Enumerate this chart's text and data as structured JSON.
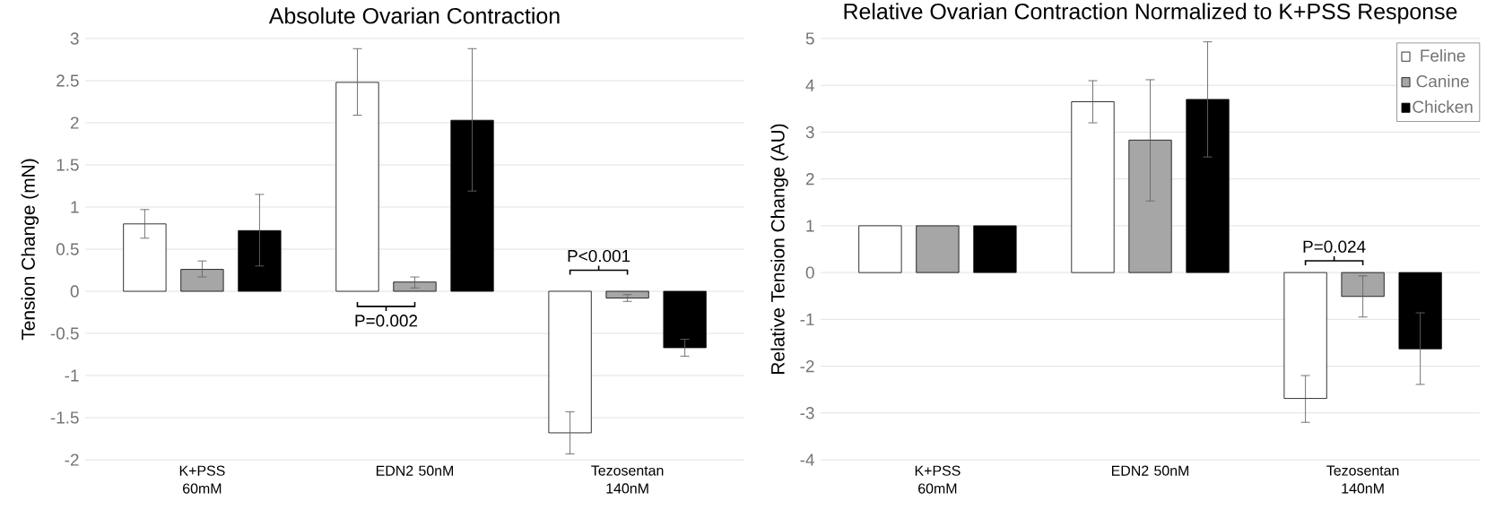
{
  "chart_data": [
    {
      "type": "bar",
      "title": "Absolute Ovarian Contraction",
      "ylabel": "Tension Change (mN)",
      "categories": [
        "K+PSS 60mM",
        "EDN2 50nM",
        "Tezosentan 140nM"
      ],
      "series": [
        {
          "color": "#ffffff",
          "values": [
            0.8,
            2.48,
            -1.68
          ],
          "errors": [
            [
              0.63,
              0.97
            ],
            [
              2.09,
              2.88
            ],
            [
              -1.93,
              -1.43
            ]
          ]
        },
        {
          "color": "#a6a6a6",
          "values": [
            0.26,
            0.11,
            -0.08
          ],
          "errors": [
            [
              0.17,
              0.36
            ],
            [
              0.04,
              0.17
            ],
            [
              -0.12,
              -0.04
            ]
          ]
        },
        {
          "color": "#000000",
          "values": [
            0.72,
            2.03,
            -0.67
          ],
          "errors": [
            [
              0.3,
              1.15
            ],
            [
              1.19,
              2.88
            ],
            [
              -0.77,
              -0.57
            ]
          ]
        }
      ],
      "ylim": [
        -2,
        3
      ],
      "yticks": [
        -2,
        -1.5,
        -1,
        -0.5,
        0,
        0.5,
        1,
        1.5,
        2,
        2.5,
        3
      ],
      "grid": "y",
      "legend": false,
      "annotations": [
        "P=0.002",
        "P<0.001"
      ]
    },
    {
      "type": "bar",
      "title": "Relative Ovarian Contraction Normalized to K+PSS Response",
      "ylabel": "Relative Tension Change (AU)",
      "categories": [
        "K+PSS 60mM",
        "EDN2 50nM",
        "Tezosentan 140nM"
      ],
      "series": [
        {
          "name": "Feline",
          "color": "#ffffff",
          "values": [
            1,
            3.65,
            -2.69
          ],
          "errors": [
            null,
            [
              3.2,
              4.1
            ],
            [
              -3.2,
              -2.2
            ]
          ]
        },
        {
          "name": "Canine",
          "color": "#a6a6a6",
          "values": [
            1,
            2.83,
            -0.51
          ],
          "errors": [
            null,
            [
              1.53,
              4.12
            ],
            [
              -0.95,
              -0.07
            ]
          ]
        },
        {
          "name": "Chicken",
          "color": "#000000",
          "values": [
            1,
            3.7,
            -1.63
          ],
          "errors": [
            null,
            [
              2.47,
              4.93
            ],
            [
              -2.39,
              -0.86
            ]
          ]
        }
      ],
      "ylim": [
        -4,
        5
      ],
      "yticks": [
        -4,
        -3,
        -2,
        -1,
        0,
        1,
        2,
        3,
        4,
        5
      ],
      "grid": "y",
      "legend": "top right",
      "annotations": [
        "P=0.024"
      ]
    }
  ]
}
